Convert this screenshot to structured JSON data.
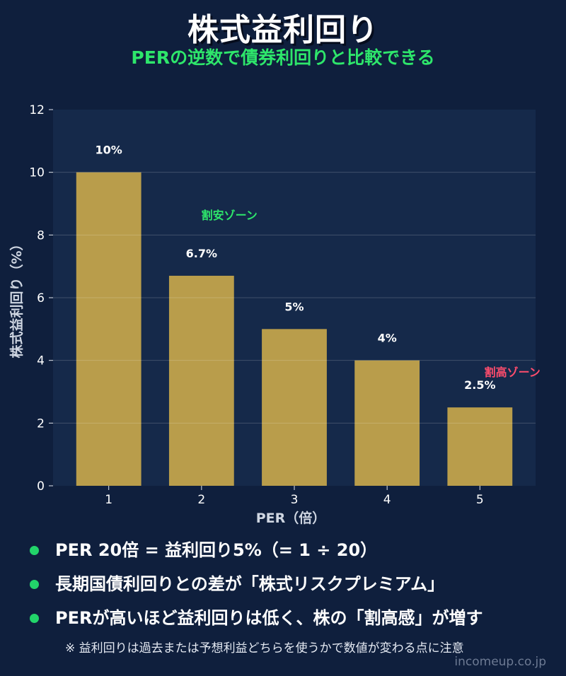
{
  "header": {
    "title": "株式益利回り",
    "subtitle": "PERの逆数で債券利回りと比較できる"
  },
  "colors": {
    "background": "#0f1f3d",
    "plot_background": "#15294a",
    "bar": "#b99d4b",
    "accent_green": "#2ee66b",
    "accent_red": "#ff4d6d"
  },
  "chart_data": {
    "type": "bar",
    "categories": [
      "1",
      "2",
      "3",
      "4",
      "5"
    ],
    "values": [
      10,
      6.7,
      5,
      4,
      2.5
    ],
    "data_labels": [
      "10%",
      "6.7%",
      "5%",
      "4%",
      "2.5%"
    ],
    "xlabel": "PER（倍）",
    "ylabel": "株式益利回り（%）",
    "ylim": [
      0,
      12
    ],
    "yticks": [
      0,
      2,
      4,
      6,
      8,
      10,
      12
    ],
    "grid": true,
    "annotations": [
      {
        "text": "割安ゾーン",
        "x": 2.3,
        "y": 8.5,
        "color": "#2ee66b"
      },
      {
        "text": "割高ゾーン",
        "x": 5.35,
        "y": 3.5,
        "color": "#ff4d6d"
      }
    ]
  },
  "bullets": [
    "PER 20倍 = 益利回り5%（= 1 ÷ 20）",
    "長期国債利回りとの差が「株式リスクプレミアム」",
    "PERが高いほど益利回りは低く、株の「割高感」が増す"
  ],
  "note": "※ 益利回りは過去または予想利益どちらを使うかで数値が変わる点に注意",
  "watermark": "incomeup.co.jp"
}
